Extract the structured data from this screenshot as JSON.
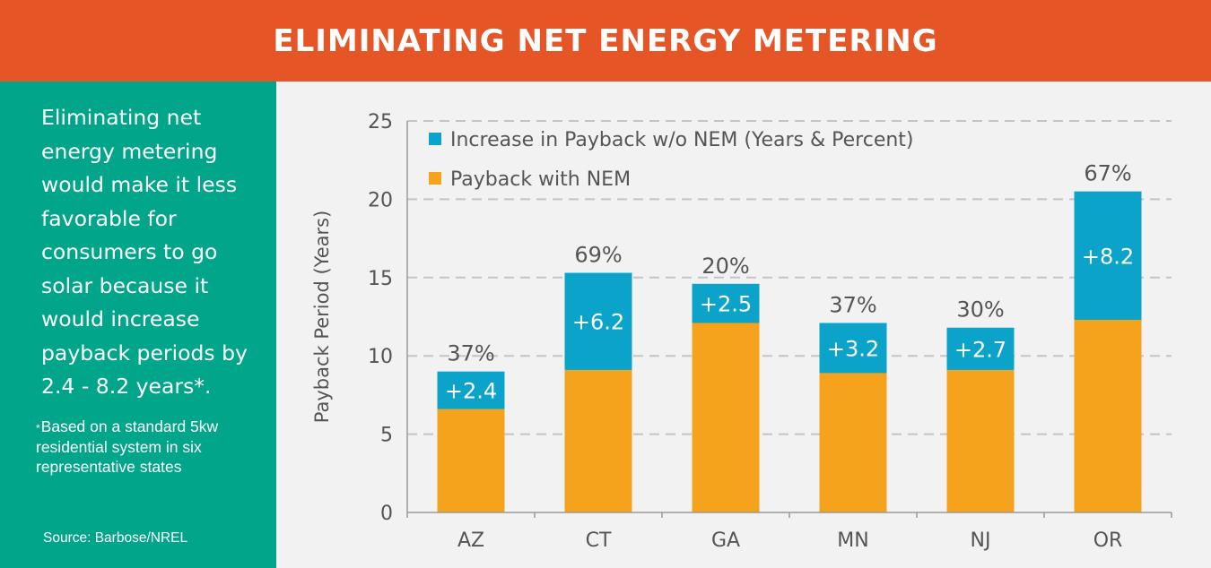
{
  "header": {
    "title": "ELIMINATING NET ENERGY METERING"
  },
  "sidebar": {
    "main_text": "Eliminating net energy metering would make it less favorable for consumers to go solar because it would increase payback periods by 2.4 - 8.2 years*.",
    "footnote_mark": "*",
    "footnote": "Based on a standard 5kw residential system in six representative states",
    "source": "Source: Barbose/NREL"
  },
  "colors": {
    "header_bg": "#e55525",
    "sidebar_bg": "#00a58a",
    "base_bar": "#f5a21d",
    "increase_bar": "#0ba3c9"
  },
  "chart_data": {
    "type": "bar",
    "stacked": true,
    "categories": [
      "AZ",
      "CT",
      "GA",
      "MN",
      "NJ",
      "OR"
    ],
    "series": [
      {
        "name": "Payback with NEM",
        "values": [
          6.6,
          9.1,
          12.1,
          8.9,
          9.1,
          12.3
        ],
        "color": "#f5a21d"
      },
      {
        "name": "Increase in Payback w/o NEM (Years & Percent)",
        "values": [
          2.4,
          6.2,
          2.5,
          3.2,
          2.7,
          8.2
        ],
        "color": "#0ba3c9"
      }
    ],
    "increase_labels": [
      "+2.4",
      "+6.2",
      "+2.5",
      "+3.2",
      "+2.7",
      "+8.2"
    ],
    "percent_labels": [
      "37%",
      "69%",
      "20%",
      "37%",
      "30%",
      "67%"
    ],
    "ylabel": "Payback Period (Years)",
    "xlabel": "",
    "ylim": [
      0,
      25
    ],
    "yticks": [
      "0",
      "5",
      "10",
      "15",
      "20",
      "25"
    ],
    "grid": true,
    "legend_position": "top-left"
  }
}
